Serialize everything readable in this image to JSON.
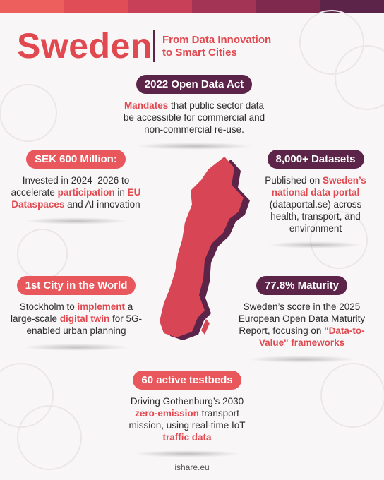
{
  "header": {
    "title": "Sweden",
    "subtitle_lines": [
      "From Data Innovation",
      "to Smart Cities"
    ]
  },
  "cards": [
    {
      "heading": "2022 Open Data Act",
      "pill_color": "#5b2448",
      "body": [
        {
          "text": "Mandates",
          "highlight": true
        },
        {
          "text": " that public sector data be accessible for commercial and non-commercial re-use.",
          "highlight": false
        }
      ]
    },
    {
      "heading": "SEK 600 Million:",
      "pill_color": "#e8575c",
      "body": [
        {
          "text": "Invested in 2024–2026 to accelerate ",
          "highlight": false
        },
        {
          "text": "participation",
          "highlight": true
        },
        {
          "text": " in ",
          "highlight": false
        },
        {
          "text": "EU Dataspaces",
          "highlight": true
        },
        {
          "text": " and AI innovation",
          "highlight": false
        }
      ]
    },
    {
      "heading": "8,000+ Datasets",
      "pill_color": "#5b2448",
      "body": [
        {
          "text": "Published on ",
          "highlight": false
        },
        {
          "text": "Sweden’s national data portal",
          "highlight": true
        },
        {
          "text": " (dataportal.se) across health, transport, and environment",
          "highlight": false
        }
      ]
    },
    {
      "heading": "1st City in the World",
      "pill_color": "#e8575c",
      "body": [
        {
          "text": "Stockholm to ",
          "highlight": false
        },
        {
          "text": "implement",
          "highlight": true
        },
        {
          "text": " a large-scale ",
          "highlight": false
        },
        {
          "text": "digital twin",
          "highlight": true
        },
        {
          "text": " for 5G-enabled urban planning",
          "highlight": false
        }
      ]
    },
    {
      "heading": "77.8% Maturity",
      "pill_color": "#5b2448",
      "body": [
        {
          "text": "Sweden’s score in the 2025 European Open Data Maturity Report, focusing on ",
          "highlight": false
        },
        {
          "text": "\"Data-to-Value\" frameworks",
          "highlight": true
        }
      ]
    },
    {
      "heading": "60 active testbeds",
      "pill_color": "#e8575c",
      "body": [
        {
          "text": "Driving Gothenburg’s 2030 ",
          "highlight": false
        },
        {
          "text": "zero-emission",
          "highlight": true
        },
        {
          "text": " transport mission, using real-time IoT ",
          "highlight": false
        },
        {
          "text": "traffic data",
          "highlight": true
        }
      ]
    }
  ],
  "footer": "ishare.eu"
}
